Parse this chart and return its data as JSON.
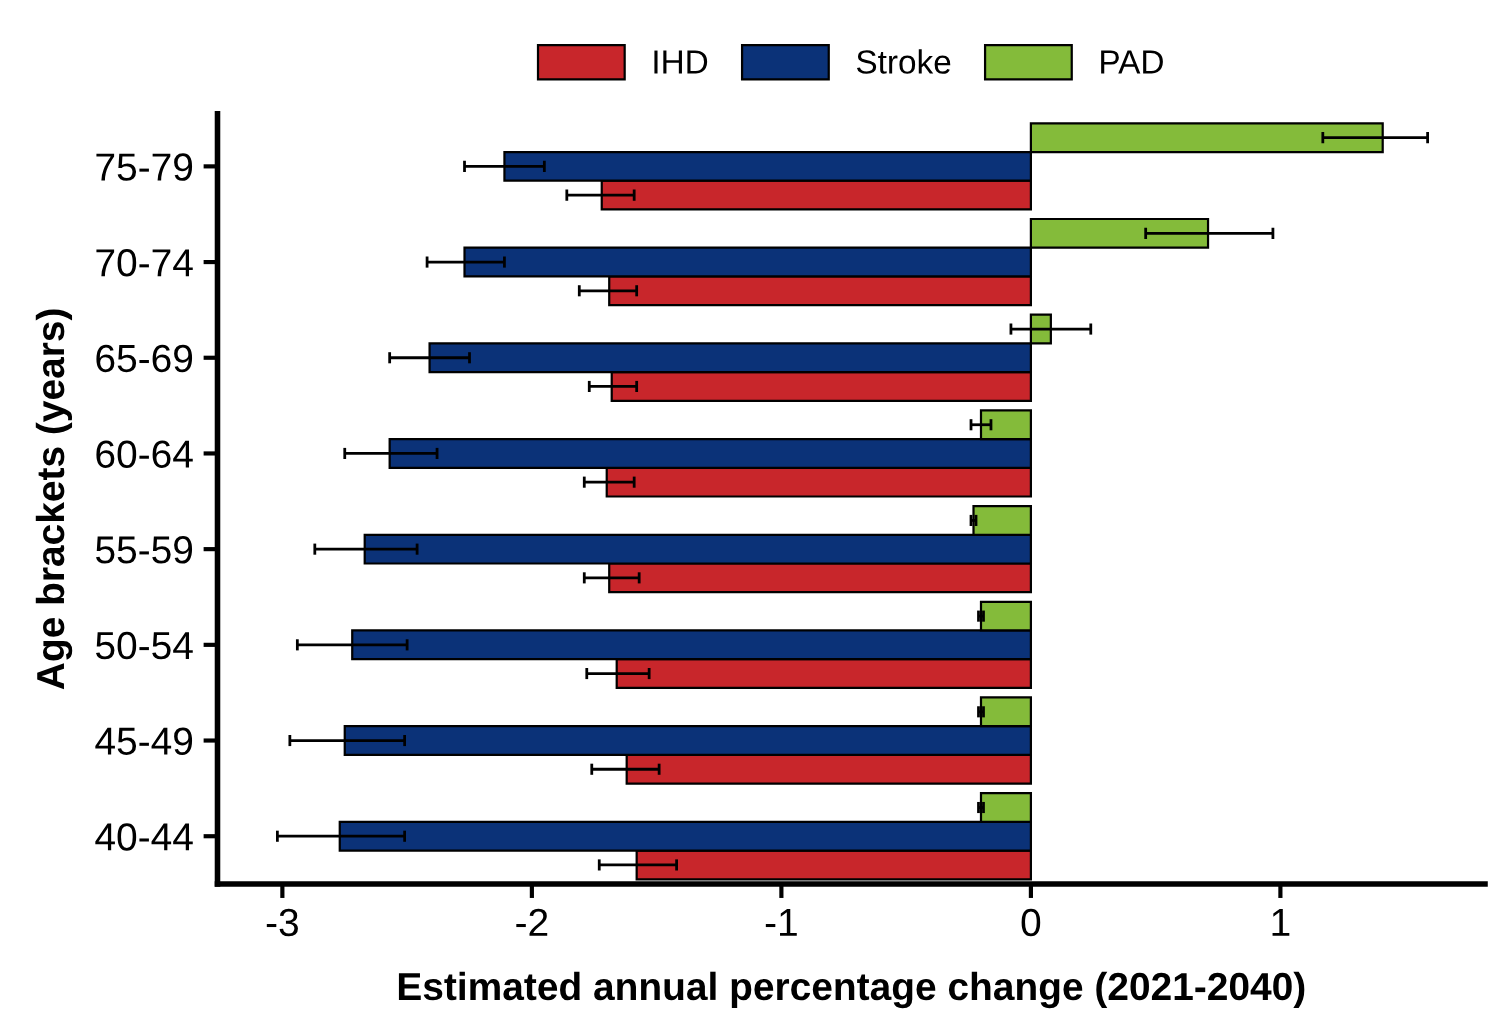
{
  "chart_data": {
    "type": "bar",
    "orientation": "horizontal",
    "xlabel": "Estimated annual percentage change (2021-2040)",
    "ylabel": "Age brackets (years)",
    "categories": [
      "75-79",
      "70-74",
      "65-69",
      "60-64",
      "55-59",
      "50-54",
      "45-49",
      "40-44"
    ],
    "series": [
      {
        "name": "IHD",
        "color": "#c8262b",
        "values": [
          -1.72,
          -1.69,
          -1.68,
          -1.7,
          -1.69,
          -1.66,
          -1.62,
          -1.58
        ],
        "errors": [
          [
            -1.86,
            -1.59
          ],
          [
            -1.81,
            -1.58
          ],
          [
            -1.77,
            -1.58
          ],
          [
            -1.79,
            -1.59
          ],
          [
            -1.79,
            -1.57
          ],
          [
            -1.78,
            -1.53
          ],
          [
            -1.76,
            -1.49
          ],
          [
            -1.73,
            -1.42
          ]
        ]
      },
      {
        "name": "Stroke",
        "color": "#0b3278",
        "values": [
          -2.11,
          -2.27,
          -2.41,
          -2.57,
          -2.67,
          -2.72,
          -2.75,
          -2.77
        ],
        "errors": [
          [
            -2.27,
            -1.95
          ],
          [
            -2.42,
            -2.11
          ],
          [
            -2.57,
            -2.25
          ],
          [
            -2.75,
            -2.38
          ],
          [
            -2.87,
            -2.46
          ],
          [
            -2.94,
            -2.5
          ],
          [
            -2.97,
            -2.51
          ],
          [
            -3.02,
            -2.51
          ]
        ]
      },
      {
        "name": "PAD",
        "color": "#84bb3a",
        "values": [
          1.41,
          0.71,
          0.08,
          -0.2,
          -0.23,
          -0.2,
          -0.2,
          -0.2
        ],
        "errors": [
          [
            1.17,
            1.59
          ],
          [
            0.46,
            0.97
          ],
          [
            -0.08,
            0.24
          ],
          [
            -0.24,
            -0.16
          ],
          [
            -0.24,
            -0.22
          ],
          [
            -0.21,
            -0.19
          ],
          [
            -0.21,
            -0.19
          ],
          [
            -0.21,
            -0.19
          ]
        ]
      }
    ],
    "xlim": [
      -3.26,
      1.82
    ],
    "xticks": [
      -3,
      -2,
      -1,
      0,
      1
    ],
    "grid": false,
    "legend": "top"
  }
}
